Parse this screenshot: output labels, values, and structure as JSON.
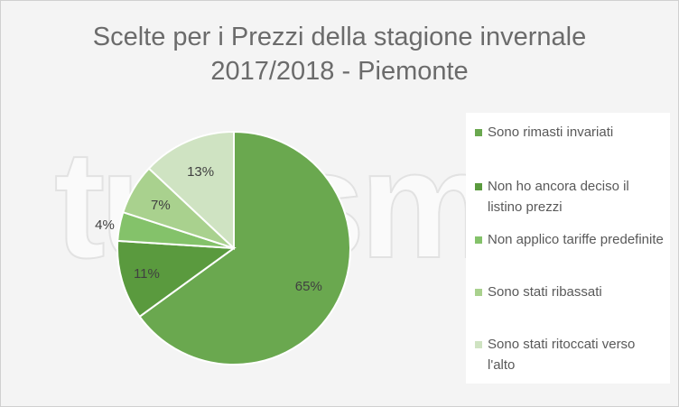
{
  "title": {
    "line1": "Scelte per i Prezzi della stagione invernale",
    "line2": "2017/2018 - Piemonte"
  },
  "watermark_text": "turismok",
  "chart_data": {
    "type": "pie",
    "title": "Scelte per i Prezzi della stagione invernale 2017/2018 - Piemonte",
    "legend_position": "right",
    "slices": [
      {
        "label": "Sono rimasti invariati",
        "value": 65,
        "value_label": "65%",
        "color": "#6aa84f"
      },
      {
        "label": "Non ho ancora deciso il listino prezzi",
        "value": 11,
        "value_label": "11%",
        "color": "#5a9a3e"
      },
      {
        "label": "Non applico tariffe predefinite",
        "value": 4,
        "value_label": "4%",
        "color": "#84c26a"
      },
      {
        "label": "Sono stati ribassati",
        "value": 7,
        "value_label": "7%",
        "color": "#a9d18e"
      },
      {
        "label": "Sono stati ritoccati verso l'alto",
        "value": 13,
        "value_label": "13%",
        "color": "#cfe3c2"
      }
    ]
  },
  "colors": {
    "title_text": "#6b6b6b",
    "label_text": "#404040",
    "legend_text": "#595959",
    "slice_border": "#ffffff"
  }
}
